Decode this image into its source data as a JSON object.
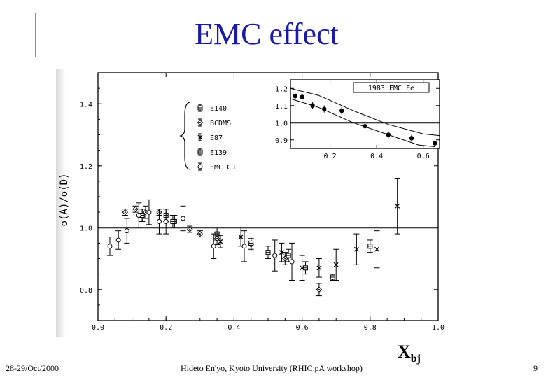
{
  "slide": {
    "title": "EMC effect",
    "footer_left": "28-29/Oct/2000",
    "footer_center": "Hideto En'yo, Kyoto University (RHIC pA workshop)",
    "page_number": "9",
    "xlabel_main": "X",
    "xlabel_sub": "bj"
  },
  "chart_data": [
    {
      "type": "scatter",
      "title": "",
      "xlabel": "",
      "ylabel": "σ(A)/σ(D)",
      "xlim": [
        0.0,
        1.0
      ],
      "ylim": [
        0.7,
        1.5
      ],
      "x_ticks": [
        "0.0",
        "0.2",
        "0.4",
        "0.6",
        "0.8",
        "1.0"
      ],
      "y_ticks": [
        "0.8",
        "1.0",
        "1.2",
        "1.4"
      ],
      "reference_line": 1.0,
      "legend": [
        "E140",
        "BCDMS",
        "E87",
        "E139",
        "EMC Cu"
      ],
      "series": [
        {
          "name": "E140",
          "marker": "square-cross",
          "points": [
            {
              "x": 0.13,
              "y": 1.04,
              "err": 0.02
            },
            {
              "x": 0.2,
              "y": 1.04,
              "err": 0.02
            },
            {
              "x": 0.225,
              "y": 1.02,
              "err": 0.02
            },
            {
              "x": 0.35,
              "y": 0.98,
              "err": 0.02
            }
          ]
        },
        {
          "name": "BCDMS",
          "marker": "diamond",
          "points": [
            {
              "x": 0.08,
              "y": 1.05,
              "err": 0.01
            },
            {
              "x": 0.11,
              "y": 1.06,
              "err": 0.01
            },
            {
              "x": 0.14,
              "y": 1.05,
              "err": 0.02
            },
            {
              "x": 0.18,
              "y": 1.05,
              "err": 0.01
            },
            {
              "x": 0.27,
              "y": 0.995,
              "err": 0.01
            },
            {
              "x": 0.3,
              "y": 0.98,
              "err": 0.01
            },
            {
              "x": 0.35,
              "y": 0.965,
              "err": 0.02
            },
            {
              "x": 0.45,
              "y": 0.945,
              "err": 0.02
            },
            {
              "x": 0.55,
              "y": 0.9,
              "err": 0.02
            },
            {
              "x": 0.65,
              "y": 0.8,
              "err": 0.02
            }
          ]
        },
        {
          "name": "E87",
          "marker": "cross",
          "points": [
            {
              "x": 0.36,
              "y": 0.955,
              "err": 0.02
            },
            {
              "x": 0.42,
              "y": 0.97,
              "err": 0.03
            },
            {
              "x": 0.54,
              "y": 0.92,
              "err": 0.03
            },
            {
              "x": 0.6,
              "y": 0.87,
              "err": 0.04
            },
            {
              "x": 0.65,
              "y": 0.87,
              "err": 0.03
            },
            {
              "x": 0.7,
              "y": 0.88,
              "err": 0.05
            },
            {
              "x": 0.76,
              "y": 0.93,
              "err": 0.05
            },
            {
              "x": 0.82,
              "y": 0.93,
              "err": 0.06
            },
            {
              "x": 0.88,
              "y": 1.07,
              "err": 0.09
            }
          ]
        },
        {
          "name": "E139",
          "marker": "square-cross",
          "points": [
            {
              "x": 0.13,
              "y": 1.04,
              "err": 0.02
            },
            {
              "x": 0.22,
              "y": 1.02,
              "err": 0.02
            },
            {
              "x": 0.45,
              "y": 0.95,
              "err": 0.02
            },
            {
              "x": 0.5,
              "y": 0.92,
              "err": 0.02
            },
            {
              "x": 0.56,
              "y": 0.91,
              "err": 0.02
            },
            {
              "x": 0.61,
              "y": 0.87,
              "err": 0.02
            },
            {
              "x": 0.69,
              "y": 0.84,
              "err": 0.01
            },
            {
              "x": 0.8,
              "y": 0.94,
              "err": 0.02
            }
          ]
        },
        {
          "name": "EMC Cu",
          "marker": "circle",
          "points": [
            {
              "x": 0.035,
              "y": 0.94,
              "err": 0.03
            },
            {
              "x": 0.06,
              "y": 0.96,
              "err": 0.03
            },
            {
              "x": 0.085,
              "y": 0.99,
              "err": 0.04
            },
            {
              "x": 0.12,
              "y": 1.04,
              "err": 0.04
            },
            {
              "x": 0.15,
              "y": 1.05,
              "err": 0.04
            },
            {
              "x": 0.18,
              "y": 1.02,
              "err": 0.04
            },
            {
              "x": 0.2,
              "y": 1.02,
              "err": 0.04
            },
            {
              "x": 0.25,
              "y": 1.03,
              "err": 0.04
            },
            {
              "x": 0.34,
              "y": 0.94,
              "err": 0.04
            },
            {
              "x": 0.43,
              "y": 0.94,
              "err": 0.05
            },
            {
              "x": 0.52,
              "y": 0.91,
              "err": 0.05
            },
            {
              "x": 0.57,
              "y": 0.89,
              "err": 0.06
            }
          ]
        }
      ]
    },
    {
      "type": "scatter",
      "title": "1983 EMC Fe",
      "xlim": [
        0.03,
        0.67
      ],
      "ylim": [
        0.85,
        1.25
      ],
      "x_ticks": [
        "0.2",
        "0.4",
        "0.6"
      ],
      "y_ticks": [
        "0.9",
        "1.0",
        "1.1",
        "1.2"
      ],
      "reference_line": 1.0,
      "series": [
        {
          "name": "EMC Fe",
          "points": [
            {
              "x": 0.05,
              "y": 1.155
            },
            {
              "x": 0.08,
              "y": 1.15
            },
            {
              "x": 0.125,
              "y": 1.1
            },
            {
              "x": 0.175,
              "y": 1.08
            },
            {
              "x": 0.25,
              "y": 1.07
            },
            {
              "x": 0.35,
              "y": 0.98
            },
            {
              "x": 0.45,
              "y": 0.93
            },
            {
              "x": 0.55,
              "y": 0.91
            },
            {
              "x": 0.65,
              "y": 0.88
            }
          ]
        },
        {
          "name": "upper band",
          "points": [
            {
              "x": 0.03,
              "y": 1.2
            },
            {
              "x": 0.15,
              "y": 1.16
            },
            {
              "x": 0.3,
              "y": 1.07
            },
            {
              "x": 0.45,
              "y": 0.99
            },
            {
              "x": 0.6,
              "y": 0.935
            },
            {
              "x": 0.67,
              "y": 0.925
            }
          ]
        },
        {
          "name": "lower band",
          "points": [
            {
              "x": 0.03,
              "y": 1.14
            },
            {
              "x": 0.15,
              "y": 1.09
            },
            {
              "x": 0.3,
              "y": 1.0
            },
            {
              "x": 0.45,
              "y": 0.93
            },
            {
              "x": 0.58,
              "y": 0.87
            },
            {
              "x": 0.65,
              "y": 0.86
            }
          ]
        }
      ]
    }
  ]
}
